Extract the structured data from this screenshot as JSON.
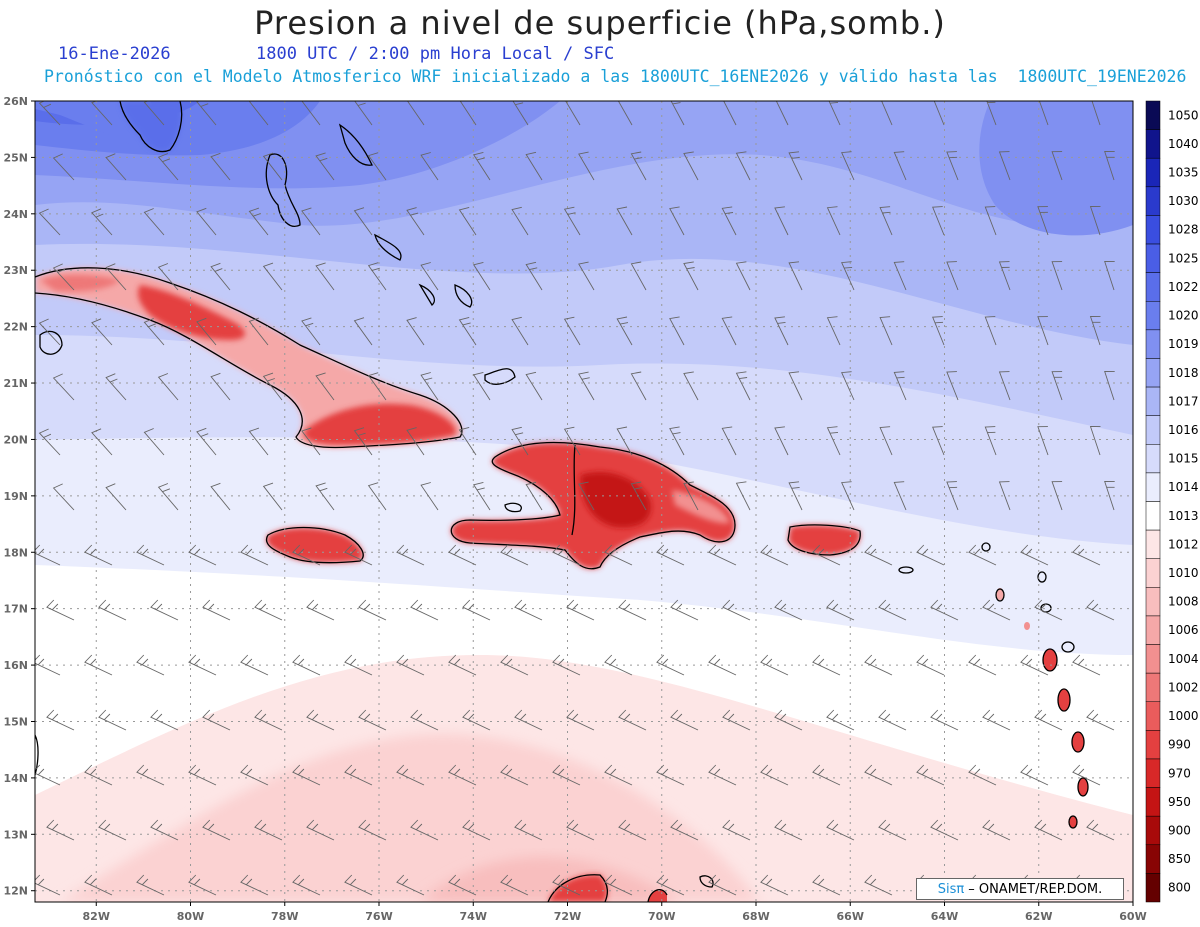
{
  "header": {
    "title": "Presion a nivel de superficie (hPa,somb.)",
    "date": "16-Ene-2026",
    "time_info": "1800 UTC / 2:00 pm Hora Local / SFC",
    "forecast_line": "Pronóstico con el Modelo Atmosferico WRF inicializado a las 1800UTC_16ENE2026 y válido hasta las  1800UTC_19ENE2026"
  },
  "axes": {
    "lat_labels": [
      "26N",
      "25N",
      "24N",
      "23N",
      "22N",
      "21N",
      "20N",
      "19N",
      "18N",
      "17N",
      "16N",
      "15N",
      "14N",
      "13N",
      "12N"
    ],
    "lon_labels": [
      "82W",
      "80W",
      "78W",
      "76W",
      "74W",
      "72W",
      "70W",
      "68W",
      "66W",
      "64W",
      "62W",
      "60W"
    ]
  },
  "colorbar": {
    "levels": [
      "1050",
      "1040",
      "1035",
      "1030",
      "1028",
      "1025",
      "1022",
      "1020",
      "1019",
      "1018",
      "1017",
      "1016",
      "1015",
      "1014",
      "1013",
      "1012",
      "1010",
      "1008",
      "1006",
      "1004",
      "1002",
      "1000",
      "990",
      "970",
      "950",
      "900",
      "850",
      "800"
    ],
    "colors": [
      "#0a0a55",
      "#10148c",
      "#1a26b8",
      "#2a3acd",
      "#3a4ee0",
      "#4a5ee6",
      "#5a6eea",
      "#6a7eee",
      "#8090f1",
      "#96a4f4",
      "#aab6f6",
      "#c2caf9",
      "#d6dbfb",
      "#eaedfd",
      "#ffffff",
      "#fde6e6",
      "#fbd2d2",
      "#f8bebe",
      "#f5a8a8",
      "#f29090",
      "#ee7878",
      "#ea5c5c",
      "#e44040",
      "#d82828",
      "#c41414",
      "#a80a0a",
      "#880404",
      "#640000"
    ]
  },
  "credit": {
    "brand": "Sisπ",
    "text": "– ONAMET/REP.DOM."
  }
}
